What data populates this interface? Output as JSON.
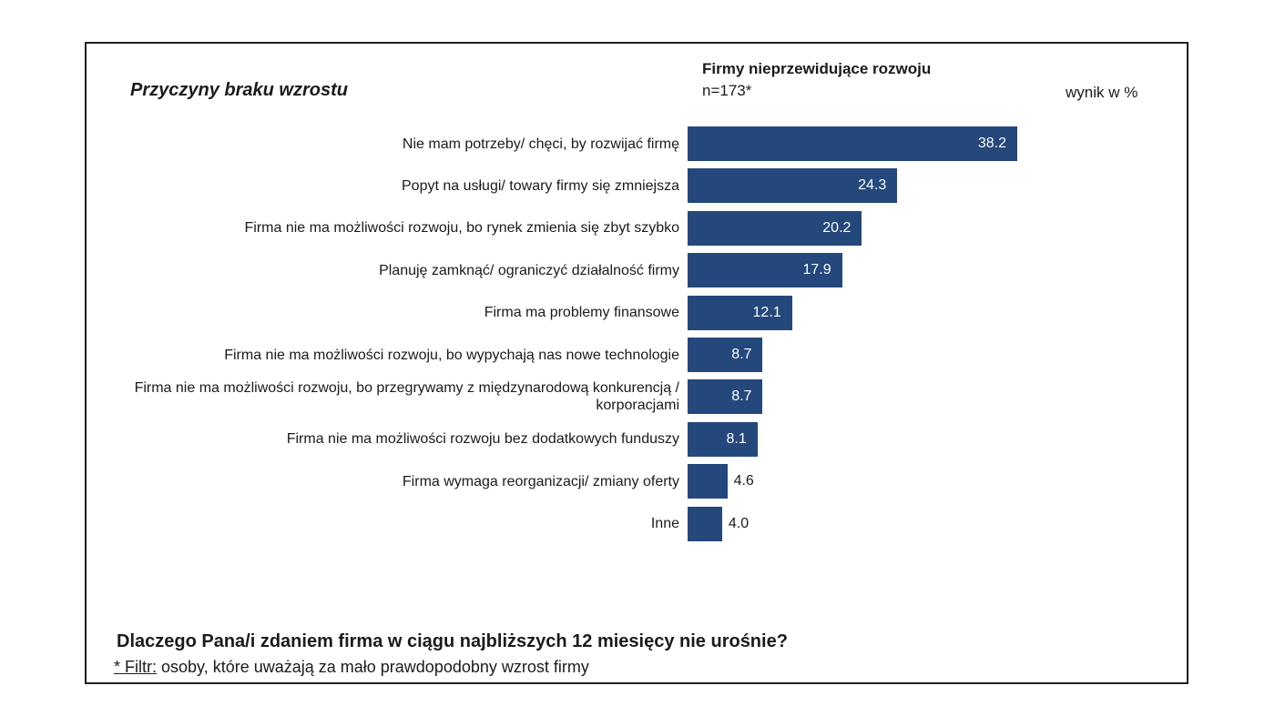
{
  "header": {
    "title": "Przyczyny braku wzrostu",
    "group": "Firmy nieprzewidujące rozwoju",
    "sample": "n=173*",
    "unit": "wynik w %"
  },
  "footer": {
    "question": "Dlaczego Pana/i zdaniem firma w ciągu najbliższych 12 miesięcy nie urośnie?",
    "filter_key": "* Filtr:",
    "filter_text": " osoby, które uważają za mało prawdopodobny wzrost firmy"
  },
  "chart_data": {
    "type": "bar",
    "orientation": "horizontal",
    "title": "Przyczyny braku wzrostu",
    "unit": "wynik w %",
    "color": "#24487b",
    "categories": [
      "Nie mam potrzeby/ chęci, by rozwijać firmę",
      "Popyt na usługi/ towary firmy się zmniejsza",
      "Firma nie ma możliwości rozwoju, bo rynek zmienia się zbyt szybko",
      "Planuję zamknąć/ ograniczyć działalność firmy",
      "Firma ma problemy finansowe",
      "Firma nie ma możliwości rozwoju, bo wypychają nas nowe technologie",
      "Firma nie ma możliwości rozwoju, bo przegrywamy z międzynarodową konkurencją / korporacjami",
      "Firma nie ma możliwości rozwoju bez dodatkowych funduszy",
      "Firma wymaga reorganizacji/ zmiany oferty",
      "Inne"
    ],
    "values": [
      38.2,
      24.3,
      20.2,
      17.9,
      12.1,
      8.7,
      8.7,
      8.1,
      4.6,
      4.0
    ],
    "value_labels": [
      "38.2",
      "24.3",
      "20.2",
      "17.9",
      "12.1",
      "8.7",
      "8.7",
      "8.1",
      "4.6",
      "4.0"
    ]
  }
}
